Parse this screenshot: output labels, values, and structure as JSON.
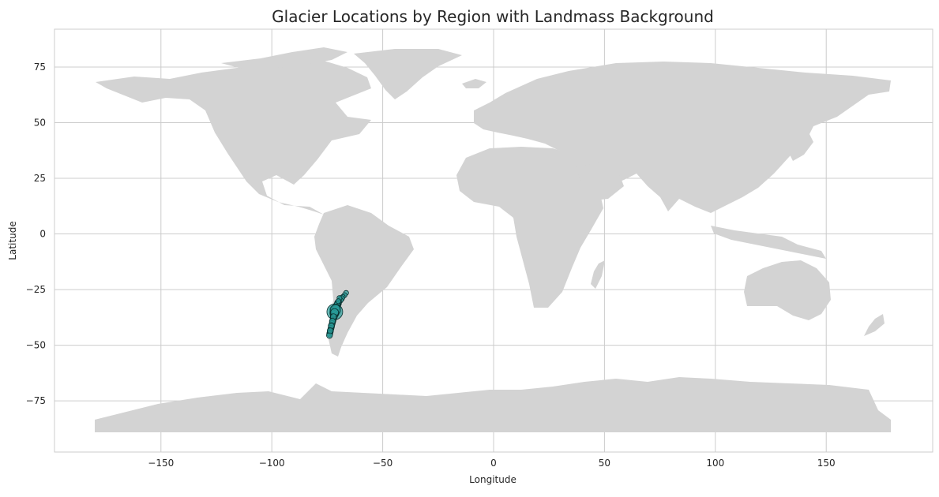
{
  "chart_data": {
    "type": "scatter",
    "title": "Glacier Locations by Region with Landmass Background",
    "xlabel": "Longitude",
    "ylabel": "Latitude",
    "xlim": [
      -198,
      198
    ],
    "ylim": [
      -98,
      92
    ],
    "xticks": [
      -150,
      -100,
      -50,
      0,
      50,
      100,
      150
    ],
    "yticks": [
      -75,
      -50,
      -25,
      0,
      25,
      50,
      75
    ],
    "xtick_labels": [
      "−150",
      "−100",
      "−50",
      "0",
      "50",
      "100",
      "150"
    ],
    "ytick_labels": [
      "−75",
      "−50",
      "−25",
      "0",
      "25",
      "50",
      "75"
    ],
    "grid": true,
    "background": "world landmass (light gray)",
    "colors": {
      "land": "#d3d3d3",
      "grid": "#cccccc",
      "marker_fill": "#2a9d9a",
      "marker_edge": "#0a2f2e",
      "text": "#262626"
    },
    "series": [
      {
        "x": [
          -66.5,
          -67.2,
          -68.0,
          -68.6,
          -69.2,
          -69.8,
          -70.2,
          -70.5,
          -70.8,
          -71.0,
          -71.2,
          -71.5,
          -71.6,
          -71.8,
          -71.9,
          -72.0,
          -72.1,
          -72.3,
          -72.4,
          -72.6,
          -72.8,
          -73.0,
          -73.1,
          -73.3,
          -73.5,
          -73.6,
          -73.8,
          -73.9,
          -74.0,
          -70.3,
          -70.6,
          -70.9,
          -71.3,
          -71.7,
          -72.2,
          -72.7,
          -73.2,
          -73.7,
          -69.5,
          -70.0
        ],
        "y": [
          -26.5,
          -27.5,
          -28.3,
          -29.0,
          -29.8,
          -30.5,
          -31.3,
          -32.0,
          -32.7,
          -33.3,
          -33.9,
          -34.4,
          -35.0,
          -35.6,
          -36.2,
          -36.9,
          -37.5,
          -38.2,
          -38.9,
          -39.6,
          -40.3,
          -41.0,
          -41.7,
          -42.4,
          -43.1,
          -43.8,
          -44.4,
          -45.0,
          -45.6,
          -30.9,
          -31.7,
          -33.0,
          -34.0,
          -35.3,
          -37.2,
          -39.2,
          -41.3,
          -43.5,
          -28.8,
          -30.2
        ],
        "sizes": [
          5,
          5,
          5,
          6,
          6,
          6,
          7,
          7,
          8,
          8,
          9,
          11,
          16,
          9,
          8,
          7,
          7,
          6,
          6,
          6,
          6,
          6,
          6,
          6,
          6,
          6,
          6,
          6,
          6,
          6,
          6,
          7,
          10,
          8,
          6,
          6,
          6,
          6,
          5,
          5
        ]
      }
    ]
  }
}
